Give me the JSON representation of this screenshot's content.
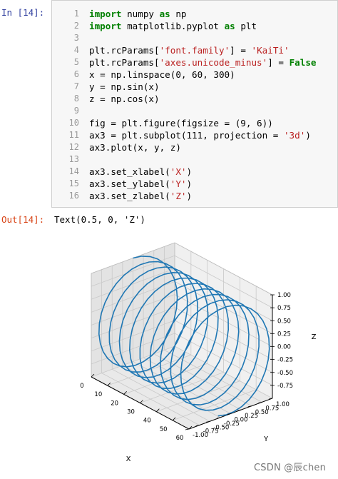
{
  "cell": {
    "in_prompt": "In  [14]:",
    "out_prompt": "Out[14]:",
    "output_text": "Text(0.5, 0, 'Z')",
    "lines": [
      {
        "n": "1",
        "tokens": [
          {
            "t": "import",
            "c": "kw"
          },
          {
            "t": " numpy ",
            "c": ""
          },
          {
            "t": "as",
            "c": "kw"
          },
          {
            "t": " np",
            "c": ""
          }
        ]
      },
      {
        "n": "2",
        "tokens": [
          {
            "t": "import",
            "c": "kw"
          },
          {
            "t": " matplotlib.pyplot ",
            "c": ""
          },
          {
            "t": "as",
            "c": "kw"
          },
          {
            "t": " plt",
            "c": ""
          }
        ]
      },
      {
        "n": "3",
        "tokens": []
      },
      {
        "n": "4",
        "tokens": [
          {
            "t": "plt.rcParams[",
            "c": ""
          },
          {
            "t": "'font.family'",
            "c": "str"
          },
          {
            "t": "] = ",
            "c": ""
          },
          {
            "t": "'KaiTi'",
            "c": "str"
          }
        ]
      },
      {
        "n": "5",
        "tokens": [
          {
            "t": "plt.rcParams[",
            "c": ""
          },
          {
            "t": "'axes.unicode_minus'",
            "c": "str"
          },
          {
            "t": "] = ",
            "c": ""
          },
          {
            "t": "False",
            "c": "kw"
          }
        ]
      },
      {
        "n": "6",
        "tokens": [
          {
            "t": "x = np.linspace(0, 60, 300)",
            "c": ""
          }
        ]
      },
      {
        "n": "7",
        "tokens": [
          {
            "t": "y = np.sin(x)",
            "c": ""
          }
        ]
      },
      {
        "n": "8",
        "tokens": [
          {
            "t": "z = np.cos(x)",
            "c": ""
          }
        ]
      },
      {
        "n": "9",
        "tokens": []
      },
      {
        "n": "10",
        "tokens": [
          {
            "t": "fig = plt.figure(figsize = (9, 6))",
            "c": ""
          }
        ]
      },
      {
        "n": "11",
        "tokens": [
          {
            "t": "ax3 = plt.subplot(111, projection = ",
            "c": ""
          },
          {
            "t": "'3d'",
            "c": "str"
          },
          {
            "t": ")",
            "c": ""
          }
        ]
      },
      {
        "n": "12",
        "tokens": [
          {
            "t": "ax3.plot(x, y, z)",
            "c": ""
          }
        ]
      },
      {
        "n": "13",
        "tokens": []
      },
      {
        "n": "14",
        "tokens": [
          {
            "t": "ax3.set_xlabel(",
            "c": ""
          },
          {
            "t": "'X'",
            "c": "str"
          },
          {
            "t": ")",
            "c": ""
          }
        ]
      },
      {
        "n": "15",
        "tokens": [
          {
            "t": "ax3.set_ylabel(",
            "c": ""
          },
          {
            "t": "'Y'",
            "c": "str"
          },
          {
            "t": ")",
            "c": ""
          }
        ]
      },
      {
        "n": "16",
        "tokens": [
          {
            "t": "ax3.set_zlabel(",
            "c": ""
          },
          {
            "t": "'Z'",
            "c": "str"
          },
          {
            "t": ")",
            "c": ""
          }
        ]
      }
    ]
  },
  "chart_data": {
    "type": "line",
    "projection": "3d",
    "title": "",
    "xlabel": "X",
    "ylabel": "Y",
    "zlabel": "Z",
    "xlim": [
      0,
      60
    ],
    "ylim": [
      -1.0,
      1.0
    ],
    "zlim": [
      -1.0,
      1.0
    ],
    "x_ticks": [
      "0",
      "10",
      "20",
      "30",
      "40",
      "50",
      "60"
    ],
    "y_ticks": [
      "-1.00",
      "-0.75",
      "-0.50",
      "-0.25",
      "0.00",
      "0.25",
      "0.50",
      "0.75",
      "1.00"
    ],
    "z_ticks": [
      "-0.75",
      "-0.50",
      "-0.25",
      "0.00",
      "0.25",
      "0.50",
      "0.75",
      "1.00"
    ],
    "series": [
      {
        "x_start": 0,
        "x_end": 60,
        "num_points": 300,
        "y": "sin(x)",
        "z": "cos(x)",
        "color": "#1f77b4"
      }
    ],
    "grid": true
  },
  "watermark": "CSDN @辰chen"
}
